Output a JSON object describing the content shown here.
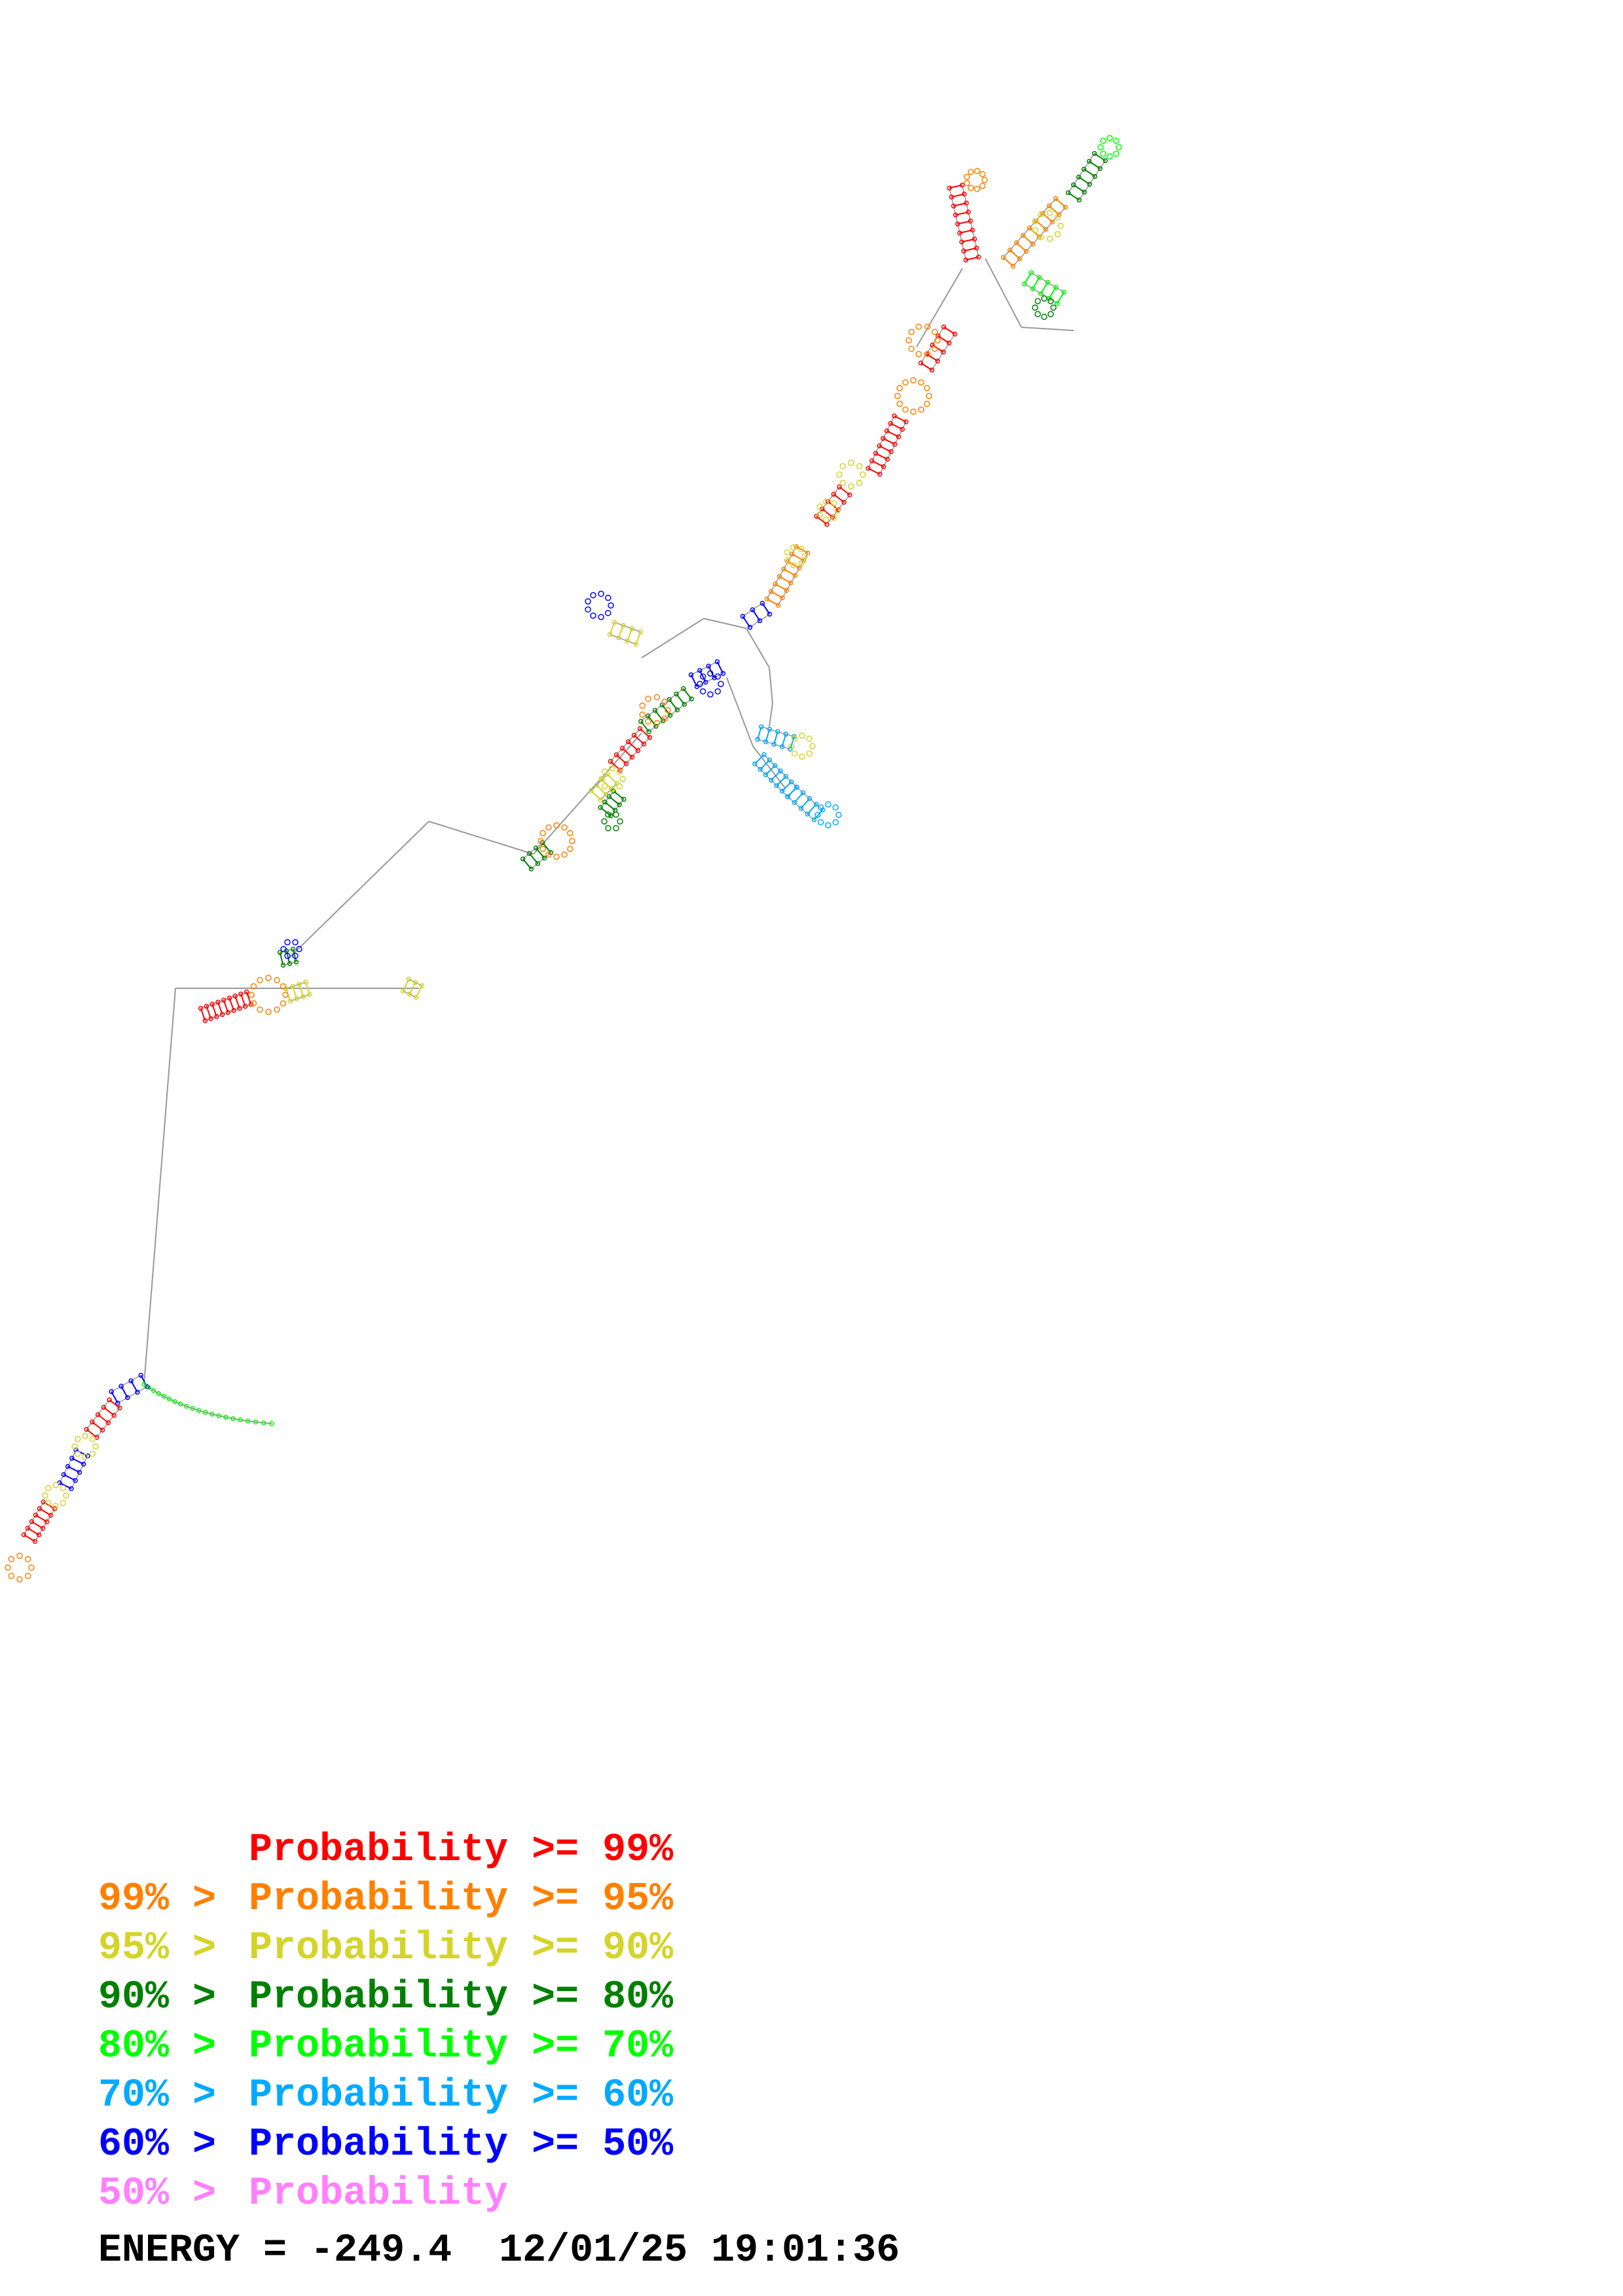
{
  "legend": {
    "rows": [
      {
        "left": "",
        "right": "Probability >= 99%",
        "color": "#ff0000"
      },
      {
        "left": "99% >",
        "right": "Probability >= 95%",
        "color": "#ff8000"
      },
      {
        "left": "95% >",
        "right": "Probability >= 90%",
        "color": "#d4d42a"
      },
      {
        "left": "90% >",
        "right": "Probability >= 80%",
        "color": "#008000"
      },
      {
        "left": "80% >",
        "right": "Probability >= 70%",
        "color": "#00ff00"
      },
      {
        "left": "70% >",
        "right": "Probability >= 60%",
        "color": "#00aaff"
      },
      {
        "left": "60% >",
        "right": "Probability >= 50%",
        "color": "#0000ff"
      },
      {
        "left": "50% >",
        "right": "Probability",
        "color": "#ff80ff"
      }
    ]
  },
  "energy": {
    "label": "ENERGY = -249.4",
    "timestamp": "12/01/25 19:01:36"
  },
  "colors": {
    "backbone": "#999999",
    "p99": "#ff0000",
    "p95": "#ff8000",
    "p90": "#d4d42a",
    "p80": "#008000",
    "p70": "#00ff00",
    "p60": "#00aaff",
    "p50": "#0000ff",
    "plow": "#ff80ff"
  }
}
